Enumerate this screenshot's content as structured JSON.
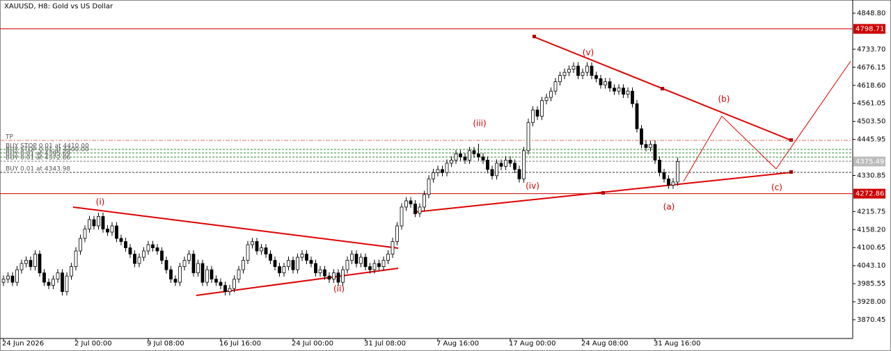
{
  "chart_data": {
    "type": "candlestick",
    "title": "XAUUSD, H8:  Gold vs US Dollar",
    "categories": [
      "24 Jun 2026",
      null,
      null,
      null,
      null,
      null,
      null,
      null,
      null,
      null,
      null,
      null,
      null,
      null,
      null,
      null,
      "2 Jul 00:00",
      null,
      null,
      null,
      null,
      null,
      null,
      null,
      null,
      null,
      null,
      null,
      null,
      null,
      null,
      null,
      "9 Jul 08:00",
      null,
      null,
      null,
      null,
      null,
      null,
      null,
      null,
      null,
      null,
      null,
      null,
      null,
      null,
      null,
      "16 Jul 16:00",
      null,
      null,
      null,
      null,
      null,
      null,
      null,
      null,
      null,
      null,
      null,
      null,
      null,
      null,
      null,
      "24 Jul 00:00",
      null,
      null,
      null,
      null,
      null,
      null,
      null,
      null,
      null,
      null,
      null,
      null,
      null,
      null,
      null,
      "31 Jul 08:00",
      null,
      null,
      null,
      null,
      null,
      null,
      null,
      null,
      null,
      null,
      null,
      null,
      null,
      null,
      null,
      "7 Aug 16:00",
      null,
      null,
      null,
      null,
      null,
      null,
      null,
      null,
      null,
      null,
      null,
      null,
      null,
      null,
      null,
      "17 Aug 00:00",
      null,
      null,
      null,
      null,
      null,
      null,
      null,
      null,
      null,
      null,
      null,
      null,
      null,
      null,
      null,
      "24 Aug 08:00",
      null,
      null,
      null,
      null,
      null,
      null,
      null,
      null,
      null,
      null,
      null,
      null,
      null,
      null,
      null,
      "31 Aug 16:00",
      null,
      null,
      null,
      null,
      null
    ],
    "open": [
      3990,
      4000,
      4010,
      3990,
      4030,
      4050,
      4060,
      4040,
      4080,
      4020,
      3990,
      3980,
      4000,
      4020,
      3960,
      4010,
      4040,
      4090,
      4130,
      4160,
      4190,
      4170,
      4200,
      4160,
      4150,
      4170,
      4130,
      4120,
      4100,
      4080,
      4050,
      4070,
      4090,
      4110,
      4100,
      4090,
      4060,
      4030,
      4000,
      3990,
      4040,
      4060,
      4080,
      4020,
      4050,
      3990,
      4030,
      4000,
      3990,
      3980,
      3960,
      3970,
      4000,
      4030,
      4060,
      4110,
      4120,
      4090,
      4100,
      4080,
      4060,
      4040,
      4020,
      4040,
      4060,
      4030,
      4070,
      4080,
      4060,
      4050,
      4020,
      4030,
      4010,
      4000,
      4020,
      3990,
      4030,
      4060,
      4080,
      4050,
      4070,
      4040,
      4030,
      4050,
      4040,
      4060,
      4080,
      4120,
      4170,
      4230,
      4250,
      4240,
      4210,
      4230,
      4270,
      4320,
      4340,
      4350,
      4340,
      4370,
      4380,
      4400,
      4390,
      4380,
      4410,
      4400,
      4390,
      4380,
      4350,
      4330,
      4370,
      4360,
      4380,
      4370,
      4350,
      4320,
      4410,
      4500,
      4540,
      4520,
      4570,
      4580,
      4600,
      4630,
      4650,
      4660,
      4670,
      4680,
      4650,
      4660,
      4680,
      4650,
      4640,
      4620,
      4630,
      4610,
      4600,
      4610,
      4590,
      4600,
      4560,
      4480,
      4430,
      4420,
      4430,
      4380,
      4340,
      4320,
      4300,
      4310
    ],
    "high": [
      4012,
      4022,
      4022,
      4042,
      4062,
      4072,
      4072,
      4092,
      4092,
      4032,
      4002,
      4012,
      4032,
      4032,
      4022,
      4052,
      4102,
      4142,
      4172,
      4202,
      4202,
      4212,
      4212,
      4172,
      4182,
      4182,
      4142,
      4132,
      4112,
      4092,
      4082,
      4102,
      4122,
      4122,
      4112,
      4102,
      4072,
      4042,
      4012,
      4052,
      4072,
      4092,
      4092,
      4062,
      4062,
      4042,
      4042,
      4012,
      4002,
      3992,
      3982,
      4012,
      4042,
      4072,
      4122,
      4132,
      4132,
      4112,
      4112,
      4092,
      4072,
      4052,
      4052,
      4072,
      4072,
      4082,
      4092,
      4092,
      4072,
      4062,
      4042,
      4042,
      4022,
      4032,
      4032,
      4042,
      4072,
      4092,
      4092,
      4082,
      4082,
      4052,
      4062,
      4062,
      4072,
      4092,
      4132,
      4182,
      4242,
      4262,
      4262,
      4252,
      4242,
      4282,
      4332,
      4352,
      4362,
      4362,
      4382,
      4392,
      4412,
      4412,
      4402,
      4422,
      4422,
      4432,
      4402,
      4392,
      4362,
      4382,
      4382,
      4392,
      4392,
      4382,
      4362,
      4422,
      4512,
      4552,
      4552,
      4582,
      4592,
      4612,
      4642,
      4662,
      4672,
      4682,
      4692,
      4692,
      4672,
      4692,
      4692,
      4662,
      4652,
      4642,
      4642,
      4622,
      4622,
      4622,
      4612,
      4612,
      4572,
      4492,
      4442,
      4442,
      4442,
      4392,
      4352,
      4332,
      4322,
      4388
    ],
    "low": [
      3978,
      3988,
      3978,
      3978,
      4018,
      4038,
      4028,
      4028,
      4008,
      3978,
      3968,
      3968,
      3988,
      3948,
      3948,
      3998,
      4028,
      4078,
      4118,
      4148,
      4158,
      4158,
      4148,
      4138,
      4138,
      4118,
      4108,
      4088,
      4068,
      4038,
      4038,
      4058,
      4078,
      4088,
      4078,
      4048,
      4018,
      3988,
      3978,
      3978,
      4028,
      4048,
      4008,
      4008,
      3978,
      3978,
      3988,
      3978,
      3968,
      3948,
      3948,
      3958,
      3988,
      4018,
      4048,
      4098,
      4078,
      4078,
      4068,
      4048,
      4028,
      4008,
      4008,
      4028,
      4018,
      4018,
      4058,
      4048,
      4038,
      4008,
      4008,
      3998,
      3988,
      3988,
      3978,
      3978,
      4018,
      4048,
      4038,
      4038,
      4028,
      4018,
      4018,
      4028,
      4028,
      4048,
      4068,
      4108,
      4158,
      4218,
      4228,
      4198,
      4198,
      4218,
      4258,
      4308,
      4328,
      4328,
      4328,
      4358,
      4368,
      4378,
      4368,
      4368,
      4388,
      4378,
      4368,
      4338,
      4318,
      4318,
      4348,
      4348,
      4358,
      4338,
      4308,
      4308,
      4398,
      4488,
      4508,
      4508,
      4558,
      4568,
      4588,
      4618,
      4638,
      4648,
      4658,
      4638,
      4638,
      4648,
      4638,
      4628,
      4608,
      4608,
      4598,
      4588,
      4588,
      4578,
      4578,
      4548,
      4468,
      4418,
      4408,
      4408,
      4368,
      4328,
      4308,
      4288,
      4288,
      4298
    ],
    "close": [
      4000,
      4010,
      3990,
      4030,
      4050,
      4060,
      4040,
      4080,
      4020,
      3990,
      3980,
      4000,
      4020,
      3960,
      4010,
      4040,
      4090,
      4130,
      4160,
      4190,
      4170,
      4200,
      4160,
      4150,
      4170,
      4130,
      4120,
      4100,
      4080,
      4050,
      4070,
      4090,
      4110,
      4100,
      4090,
      4060,
      4030,
      4000,
      3990,
      4040,
      4060,
      4080,
      4020,
      4050,
      3990,
      4030,
      4000,
      3990,
      3980,
      3960,
      3970,
      4000,
      4030,
      4060,
      4110,
      4120,
      4090,
      4100,
      4080,
      4060,
      4040,
      4020,
      4040,
      4060,
      4030,
      4070,
      4080,
      4060,
      4050,
      4020,
      4030,
      4010,
      4000,
      4020,
      3990,
      4030,
      4060,
      4080,
      4050,
      4070,
      4040,
      4030,
      4050,
      4040,
      4060,
      4080,
      4120,
      4170,
      4230,
      4250,
      4240,
      4210,
      4230,
      4270,
      4320,
      4340,
      4350,
      4340,
      4370,
      4380,
      4400,
      4390,
      4380,
      4410,
      4400,
      4390,
      4380,
      4350,
      4330,
      4370,
      4360,
      4380,
      4370,
      4350,
      4320,
      4410,
      4500,
      4540,
      4520,
      4570,
      4580,
      4600,
      4630,
      4650,
      4660,
      4670,
      4680,
      4650,
      4660,
      4680,
      4650,
      4640,
      4620,
      4630,
      4610,
      4600,
      4610,
      4590,
      4600,
      4560,
      4480,
      4430,
      4420,
      4430,
      4380,
      4340,
      4320,
      4300,
      4310,
      4375.49
    ],
    "ylim": [
      3810.6,
      4890.9
    ],
    "yticks": [
      {
        "value": 4848.8,
        "label": "4848.80"
      },
      {
        "value": 4733.7,
        "label": "4733.70"
      },
      4676.15,
      {
        "value": 4618.6,
        "label": "4618.60"
      },
      4561.05,
      {
        "value": 4503.5,
        "label": "4503.50"
      },
      4445.95,
      4330.85,
      4215.75,
      {
        "value": 4158.2,
        "label": "4158.20"
      },
      4100.65,
      {
        "value": 4043.1,
        "label": "4043.10"
      },
      3985.55,
      {
        "value": 3928.0,
        "label": "3928.00"
      },
      3870.45
    ],
    "hlines": [
      4798.71,
      4272.86
    ],
    "last_price": 4375.49,
    "waves": [
      "(i)",
      "(ii)",
      "(iii)",
      "(iv)",
      "(v)",
      "(a)",
      "(b)",
      "(c)"
    ],
    "orders": [
      "TP",
      "BUY STOP 0.01 at 4410.00",
      "BUY STOP 0.01 at 4400.00",
      "BUY 0.01 at 4395.69",
      "BUY 0.01 at 4372.86",
      "BUY 0.01 at 4343.98"
    ]
  }
}
